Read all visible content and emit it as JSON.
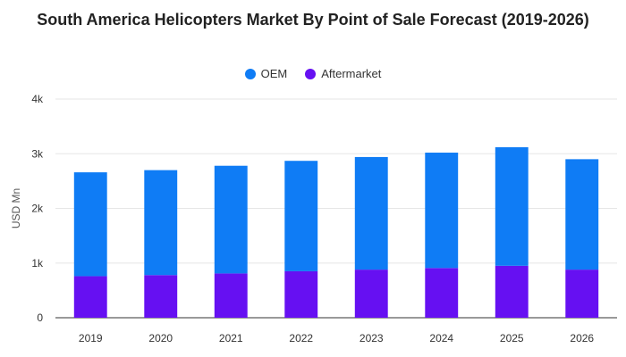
{
  "chart_data": {
    "type": "bar",
    "stacked": true,
    "title": "South America Helicopters Market By Point of Sale Forecast (2019-2026)",
    "ylabel": "USD Mn",
    "xlabel": "",
    "categories": [
      "2019",
      "2020",
      "2021",
      "2022",
      "2023",
      "2024",
      "2025",
      "2026"
    ],
    "ylim": [
      0,
      4000
    ],
    "yticks": [
      0,
      1000,
      2000,
      3000,
      4000
    ],
    "ytick_labels": [
      "0",
      "1k",
      "2k",
      "3k",
      "4k"
    ],
    "series": [
      {
        "name": "Aftermarket",
        "color": "#6610f2",
        "values": [
          760,
          780,
          810,
          850,
          880,
          910,
          950,
          880
        ]
      },
      {
        "name": "OEM",
        "color": "#0f7cf5",
        "values": [
          1900,
          1920,
          1970,
          2020,
          2060,
          2110,
          2170,
          2020
        ]
      }
    ],
    "legend": {
      "position": "top",
      "order": [
        "OEM",
        "Aftermarket"
      ]
    },
    "grid": true
  }
}
